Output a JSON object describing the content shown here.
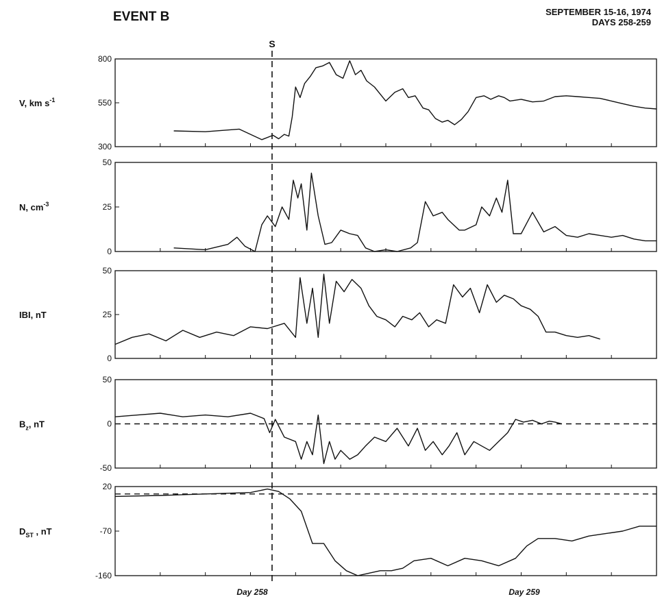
{
  "title": "EVENT B",
  "date_line1": "SEPTEMBER 15-16, 1974",
  "date_line2": "DAYS 258-259",
  "shock_label": "S",
  "x_ticks": [
    "Day 258",
    "Day 259"
  ],
  "chart_data": [
    {
      "type": "line",
      "ylabel": "V, km s-1",
      "ylabel_main": "V, km s",
      "ylabel_sup": "-1",
      "ylim": [
        300,
        800
      ],
      "yticks": [
        300,
        550,
        800
      ],
      "x_range_hours": [
        -16,
        32
      ],
      "series": [
        {
          "x": [
            -10.8,
            -8,
            -5,
            -3,
            -2,
            -1.5,
            -1,
            -0.6,
            -0.3,
            0,
            0.4,
            0.8,
            1.3,
            1.8,
            2.4,
            3,
            3.6,
            4.2,
            4.8,
            5.3,
            5.8,
            6.3,
            7,
            8,
            8.8,
            9.5,
            10,
            10.6,
            11.3,
            11.8,
            12.4,
            13,
            13.5,
            14.1,
            14.7,
            15.3,
            16,
            16.7,
            17.3,
            18,
            18.5,
            19,
            20,
            21,
            22,
            23,
            24,
            25,
            26,
            27,
            28,
            29,
            30,
            31,
            32
          ],
          "y": [
            390,
            385,
            400,
            340,
            365,
            345,
            370,
            360,
            470,
            640,
            580,
            660,
            700,
            750,
            760,
            780,
            710,
            690,
            790,
            710,
            735,
            675,
            640,
            560,
            610,
            630,
            580,
            590,
            520,
            510,
            460,
            440,
            450,
            425,
            455,
            500,
            580,
            590,
            570,
            590,
            580,
            560,
            570,
            555,
            560,
            585,
            590,
            585,
            580,
            575,
            560,
            545,
            530,
            520,
            515
          ]
        }
      ]
    },
    {
      "type": "line",
      "ylabel": "N, cm-3",
      "ylabel_main": "N, cm",
      "ylabel_sup": "-3",
      "ylim": [
        0,
        50
      ],
      "yticks": [
        0,
        25,
        50
      ],
      "x_range_hours": [
        -16,
        32
      ],
      "series": [
        {
          "x": [
            -10.8,
            -8,
            -6,
            -5.2,
            -4.5,
            -3.6,
            -3,
            -2.5,
            -1.8,
            -1.2,
            -0.6,
            -0.2,
            0.2,
            0.5,
            1,
            1.4,
            2,
            2.6,
            3.2,
            4,
            4.8,
            5.5,
            6.2,
            7,
            8,
            9,
            10.2,
            10.8,
            11.5,
            12.2,
            13,
            13.5,
            14.5,
            15,
            16,
            16.5,
            17.2,
            17.8,
            18.3,
            18.8,
            19.3,
            20,
            21,
            22,
            23,
            24,
            25,
            26,
            27,
            28,
            29,
            30,
            31,
            32
          ],
          "y": [
            2,
            1,
            4,
            8,
            3,
            0,
            15,
            20,
            14,
            25,
            18,
            40,
            30,
            38,
            12,
            44,
            20,
            4,
            5,
            12,
            10,
            9,
            2,
            0,
            1,
            0,
            2,
            5,
            28,
            20,
            22,
            18,
            12,
            12,
            15,
            25,
            20,
            30,
            22,
            40,
            10,
            10,
            22,
            11,
            14,
            9,
            8,
            10,
            9,
            8,
            9,
            7,
            6,
            6
          ]
        }
      ]
    },
    {
      "type": "line",
      "ylabel": "|B|, nT",
      "ylabel_main": "IBI, nT",
      "ylabel_sup": "",
      "ylim": [
        0,
        50
      ],
      "yticks": [
        0,
        25,
        50
      ],
      "x_range_hours": [
        -16,
        32
      ],
      "series": [
        {
          "x": [
            -16,
            -14.5,
            -13,
            -11.5,
            -10,
            -8.5,
            -7,
            -5.5,
            -4,
            -2.5,
            -1,
            0,
            0.4,
            1,
            1.5,
            2,
            2.5,
            3,
            3.6,
            4.3,
            5,
            5.8,
            6.5,
            7.2,
            8,
            8.8,
            9.5,
            10.3,
            11,
            11.8,
            12.5,
            13.3,
            14,
            14.8,
            15.5,
            16.3,
            17,
            17.8,
            18.5,
            19.3,
            20,
            20.8,
            21.5,
            22.2,
            23,
            24,
            25,
            26,
            27
          ],
          "y": [
            8,
            12,
            14,
            10,
            16,
            12,
            15,
            13,
            18,
            17,
            20,
            12,
            46,
            20,
            40,
            12,
            48,
            20,
            44,
            38,
            45,
            40,
            30,
            24,
            22,
            18,
            24,
            22,
            26,
            18,
            22,
            20,
            42,
            35,
            40,
            26,
            42,
            32,
            36,
            34,
            30,
            28,
            24,
            15,
            15,
            13,
            12,
            13,
            11
          ]
        }
      ]
    },
    {
      "type": "line",
      "ylabel": "Bz, nT",
      "ylabel_main": "B",
      "ylabel_sup": "z",
      "ylabel_suffix": ", nT",
      "ylim": [
        -50,
        50
      ],
      "yticks": [
        -50,
        0,
        50
      ],
      "x_range_hours": [
        -16,
        32
      ],
      "zero_line": true,
      "series": [
        {
          "x": [
            -16,
            -14,
            -12,
            -10,
            -8,
            -6,
            -4,
            -2.8,
            -2.3,
            -1.8,
            -1,
            0,
            0.5,
            1,
            1.5,
            2,
            2.5,
            3,
            3.5,
            4,
            4.8,
            5.5,
            6.2,
            7,
            8,
            9,
            10,
            10.8,
            11.5,
            12.2,
            13,
            13.6,
            14.3,
            15,
            15.8,
            16.5,
            17.2,
            18,
            18.8,
            19.5,
            20.2,
            21,
            21.8,
            22.5,
            23,
            23.6
          ],
          "y": [
            8,
            10,
            12,
            8,
            10,
            8,
            12,
            6,
            -10,
            5,
            -15,
            -20,
            -40,
            -20,
            -35,
            10,
            -45,
            -20,
            -40,
            -30,
            -40,
            -35,
            -25,
            -15,
            -20,
            -5,
            -25,
            -5,
            -30,
            -20,
            -35,
            -25,
            -10,
            -35,
            -20,
            -25,
            -30,
            -20,
            -10,
            5,
            2,
            4,
            0,
            3,
            2,
            0
          ]
        }
      ]
    },
    {
      "type": "line",
      "ylabel": "DST, nT",
      "ylabel_main": "D",
      "ylabel_sup": "ST",
      "ylabel_suffix": " , nT",
      "ylim": [
        -160,
        20
      ],
      "yticks": [
        -160,
        -70,
        20
      ],
      "x_range_hours": [
        -16,
        32
      ],
      "reference_level": 5,
      "series": [
        {
          "x": [
            -16,
            -12,
            -8,
            -4,
            -2.5,
            -1.5,
            -0.5,
            0.5,
            1.5,
            2.5,
            3.5,
            4.5,
            5.5,
            6.5,
            7.5,
            8.5,
            9.5,
            10.5,
            12,
            13.5,
            15,
            16.5,
            18,
            19.5,
            20.5,
            21.5,
            23,
            24.5,
            26,
            27.5,
            29,
            30.5,
            32
          ],
          "y": [
            0,
            2,
            5,
            8,
            15,
            10,
            -5,
            -30,
            -95,
            -95,
            -130,
            -150,
            -160,
            -155,
            -150,
            -150,
            -145,
            -130,
            -125,
            -140,
            -125,
            -130,
            -140,
            -125,
            -100,
            -85,
            -85,
            -90,
            -80,
            -75,
            -70,
            -60,
            -60
          ]
        }
      ]
    }
  ]
}
